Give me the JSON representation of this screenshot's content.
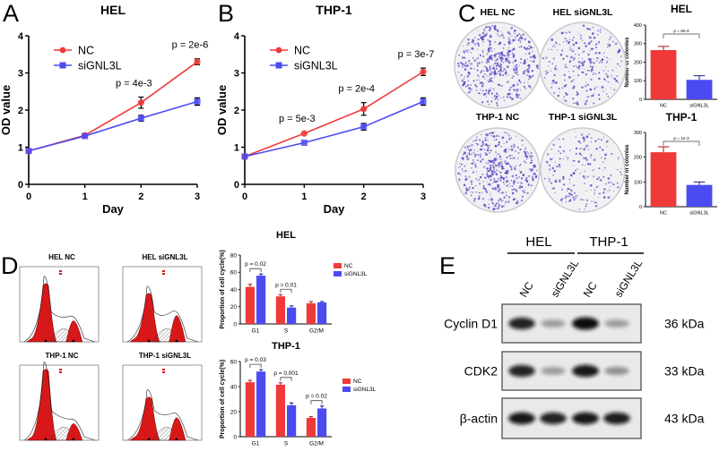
{
  "panel_labels": [
    "A",
    "B",
    "C",
    "D",
    "E"
  ],
  "colors": {
    "nc": "#f03a3a",
    "si": "#4b4bf2",
    "colony": "#5a4cc4",
    "axis": "#000000"
  },
  "chart_data": [
    {
      "type": "line",
      "title": "HEL",
      "xlabel": "Day",
      "ylabel": "OD value",
      "xlim": [
        0,
        3
      ],
      "ylim": [
        0,
        4
      ],
      "x_ticks": [
        "0",
        "1",
        "2",
        "3"
      ],
      "y_ticks": [
        "0",
        "1",
        "2",
        "3",
        "4"
      ],
      "x": [
        0,
        1,
        2,
        3
      ],
      "legend": "top-left",
      "series": [
        {
          "name": "NC",
          "marker": "circle",
          "values": [
            0.9,
            1.32,
            2.2,
            3.3
          ],
          "errors": [
            0.03,
            0.03,
            0.15,
            0.08
          ]
        },
        {
          "name": "siGNL3L",
          "marker": "square",
          "values": [
            0.9,
            1.3,
            1.78,
            2.23
          ],
          "errors": [
            0.03,
            0.03,
            0.08,
            0.1
          ]
        }
      ],
      "annotations": [
        {
          "x": 2,
          "text": "p = 4e-3"
        },
        {
          "x": 3,
          "text": "p = 2e-6"
        }
      ]
    },
    {
      "type": "line",
      "title": "THP-1",
      "xlabel": "Day",
      "ylabel": "OD value",
      "xlim": [
        0,
        3
      ],
      "ylim": [
        0,
        4
      ],
      "x_ticks": [
        "0",
        "1",
        "2",
        "3"
      ],
      "y_ticks": [
        "0",
        "1",
        "2",
        "3",
        "4"
      ],
      "x": [
        0,
        1,
        2,
        3
      ],
      "legend": "top-left",
      "series": [
        {
          "name": "NC",
          "marker": "circle",
          "values": [
            0.75,
            1.37,
            2.03,
            3.03
          ],
          "errors": [
            0.03,
            0.03,
            0.17,
            0.1
          ]
        },
        {
          "name": "siGNL3L",
          "marker": "square",
          "values": [
            0.75,
            1.12,
            1.55,
            2.23
          ],
          "errors": [
            0.03,
            0.03,
            0.09,
            0.1
          ]
        }
      ],
      "annotations": [
        {
          "x": 1,
          "text": "p = 5e-3"
        },
        {
          "x": 2,
          "text": "p = 2e-4"
        },
        {
          "x": 3,
          "text": "p = 3e-7"
        }
      ]
    },
    {
      "type": "bar",
      "title": "HEL",
      "ylabel": "Number of colonies",
      "categories": [
        "NC",
        "siGNL3L"
      ],
      "values": [
        265,
        105
      ],
      "errors": [
        20,
        22
      ],
      "ylim": [
        0,
        400
      ],
      "y_ticks": [
        "0",
        "100",
        "200",
        "300",
        "400"
      ],
      "annotation": "p = 8e-4"
    },
    {
      "type": "bar",
      "title": "THP-1",
      "ylabel": "Number of colonies",
      "categories": [
        "NC",
        "siGNL3L"
      ],
      "values": [
        220,
        88
      ],
      "errors": [
        22,
        12
      ],
      "ylim": [
        0,
        300
      ],
      "y_ticks": [
        "0",
        "100",
        "200",
        "300"
      ],
      "annotation": "p = 1e-3"
    },
    {
      "type": "bar",
      "title": "HEL",
      "ylabel": "Proportion of cell cycle(%)",
      "categories": [
        "G1",
        "S",
        "G2/M"
      ],
      "ylim": [
        0,
        80
      ],
      "y_ticks": [
        "0",
        "20",
        "40",
        "60",
        "80"
      ],
      "legend": "right",
      "series": [
        {
          "name": "NC",
          "values": [
            43,
            32,
            24
          ],
          "errors": [
            3,
            2,
            2
          ]
        },
        {
          "name": "siGNL3L",
          "values": [
            56,
            19,
            25
          ],
          "errors": [
            2,
            2,
            1
          ]
        }
      ],
      "annotations": [
        "p = 0.02",
        "p = 0.01",
        ""
      ]
    },
    {
      "type": "bar",
      "title": "THP-1",
      "ylabel": "Proportion of cell cycle(%)",
      "categories": [
        "G1",
        "S",
        "G2/M"
      ],
      "ylim": [
        0,
        60
      ],
      "y_ticks": [
        "0",
        "20",
        "40",
        "60"
      ],
      "legend": "right",
      "series": [
        {
          "name": "NC",
          "values": [
            43.5,
            41.5,
            15
          ],
          "errors": [
            1.5,
            1.5,
            1
          ]
        },
        {
          "name": "siGNL3L",
          "values": [
            52,
            25,
            22.5
          ],
          "errors": [
            1.5,
            2,
            2
          ]
        }
      ],
      "annotations": [
        "p = 0.03",
        "p = 0.001",
        "p = 0.02"
      ]
    }
  ],
  "colony_plates": [
    {
      "label": "HEL NC",
      "density": 520
    },
    {
      "label": "HEL siGNL3L",
      "density": 260
    },
    {
      "label": "THP-1 NC",
      "density": 480
    },
    {
      "label": "THP-1 siGNL3L",
      "density": 200
    }
  ],
  "flow_plots": [
    {
      "label": "HEL NC"
    },
    {
      "label": "HEL siGNL3L"
    },
    {
      "label": "THP-1 NC"
    },
    {
      "label": "THP-1 siGNL3L"
    }
  ],
  "western_blot": {
    "groups": [
      "HEL",
      "THP-1"
    ],
    "lanes": [
      "NC",
      "siGNL3L",
      "NC",
      "siGNL3L"
    ],
    "rows": [
      {
        "protein": "Cyclin D1",
        "size": "36 kDa",
        "intensity": [
          0.9,
          0.35,
          1.0,
          0.35
        ]
      },
      {
        "protein": "CDK2",
        "size": "33 kDa",
        "intensity": [
          0.9,
          0.35,
          0.95,
          0.4
        ]
      },
      {
        "protein": "β-actin",
        "size": "43 kDa",
        "intensity": [
          0.95,
          0.9,
          0.95,
          0.92
        ]
      }
    ]
  }
}
